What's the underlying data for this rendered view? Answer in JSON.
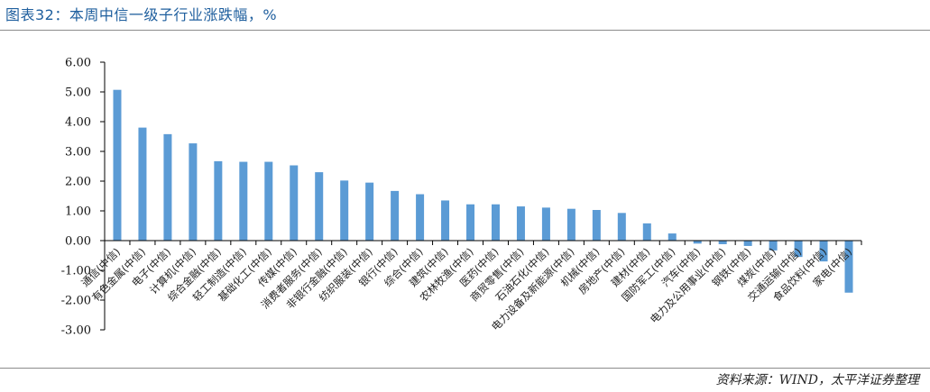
{
  "figure": {
    "title": "图表32：本周中信一级子行业涨跌幅，%",
    "source": "资料来源：WIND，太平洋证券整理"
  },
  "colors": {
    "bar": "#5b9bd5",
    "axis": "#000000",
    "title": "#1f5f9e"
  },
  "chart_data": {
    "type": "bar",
    "title": "",
    "xlabel": "",
    "ylabel": "",
    "ylim": [
      -3.0,
      6.0
    ],
    "yticks": [
      "6.00",
      "5.00",
      "4.00",
      "3.00",
      "2.00",
      "1.00",
      "0.00",
      "-1.00",
      "-2.00",
      "-3.00"
    ],
    "grid": false,
    "legend": "none",
    "categories": [
      "通信(中信)",
      "有色金属(中信)",
      "电子(中信)",
      "计算机(中信)",
      "综合金融(中信)",
      "轻工制造(中信)",
      "基础化工(中信)",
      "传媒(中信)",
      "消费者服务(中信)",
      "非银行金融(中信)",
      "纺织服装(中信)",
      "银行(中信)",
      "综合(中信)",
      "建筑(中信)",
      "农林牧渔(中信)",
      "医药(中信)",
      "商贸零售(中信)",
      "石油石化(中信)",
      "电力设备及新能源(中信)",
      "机械(中信)",
      "房地产(中信)",
      "建材(中信)",
      "国防军工(中信)",
      "汽车(中信)",
      "电力及公用事业(中信)",
      "钢铁(中信)",
      "煤炭(中信)",
      "交通运输(中信)",
      "食品饮料(中信)",
      "家电(中信)"
    ],
    "values": [
      5.07,
      3.8,
      3.58,
      3.27,
      2.67,
      2.65,
      2.65,
      2.53,
      2.3,
      2.02,
      1.95,
      1.67,
      1.56,
      1.35,
      1.22,
      1.22,
      1.15,
      1.11,
      1.07,
      1.03,
      0.93,
      0.58,
      0.24,
      -0.1,
      -0.12,
      -0.18,
      -0.33,
      -0.55,
      -0.7,
      -1.75
    ]
  }
}
